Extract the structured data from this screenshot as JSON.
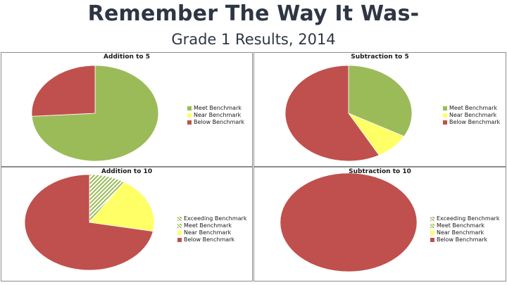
{
  "header": {
    "title": "Remember The Way It Was-",
    "subtitle": "Grade 1 Results, 2014"
  },
  "colors": {
    "exceeding": "#9bbb59",
    "meet": "#9bbb59",
    "near": "#ffff66",
    "below": "#c0504d"
  },
  "chart_data": [
    {
      "type": "pie",
      "title": "Addition to 5",
      "legend_position": "right",
      "series": [
        {
          "name": "Meet Benchmark",
          "value": 74,
          "color": "#9bbb59",
          "pattern": "solid"
        },
        {
          "name": "Near Benchmark",
          "value": 0,
          "color": "#ffff66",
          "pattern": "solid"
        },
        {
          "name": "Below Benchmark",
          "value": 26,
          "color": "#c0504d",
          "pattern": "solid"
        }
      ]
    },
    {
      "type": "pie",
      "title": "Subtraction to 5",
      "legend_position": "right",
      "series": [
        {
          "name": "Meet Benchmark",
          "value": 33,
          "color": "#9bbb59",
          "pattern": "solid"
        },
        {
          "name": "Near Benchmark",
          "value": 9,
          "color": "#ffff66",
          "pattern": "solid"
        },
        {
          "name": "Below Benchmark",
          "value": 58,
          "color": "#c0504d",
          "pattern": "solid"
        }
      ]
    },
    {
      "type": "pie",
      "title": "Addition to 10",
      "legend_position": "right",
      "series": [
        {
          "name": "Exceeding Benchmark",
          "value": 0,
          "color": "#9bbb59",
          "pattern": "hatch"
        },
        {
          "name": "Meet Benchmark",
          "value": 9,
          "color": "#9bbb59",
          "pattern": "hatch"
        },
        {
          "name": "Near Benchmark",
          "value": 19,
          "color": "#ffff66",
          "pattern": "solid"
        },
        {
          "name": "Below Benchmark",
          "value": 72,
          "color": "#c0504d",
          "pattern": "solid"
        }
      ]
    },
    {
      "type": "pie",
      "title": "Subtraction to 10",
      "legend_position": "right",
      "series": [
        {
          "name": "Exceeding Benchmark",
          "value": 0,
          "color": "#9bbb59",
          "pattern": "hatch"
        },
        {
          "name": "Meet Benchmark",
          "value": 0,
          "color": "#9bbb59",
          "pattern": "hatch"
        },
        {
          "name": "Near Benchmark",
          "value": 0,
          "color": "#ffff66",
          "pattern": "solid"
        },
        {
          "name": "Below Benchmark",
          "value": 100,
          "color": "#c0504d",
          "pattern": "solid"
        }
      ]
    }
  ]
}
